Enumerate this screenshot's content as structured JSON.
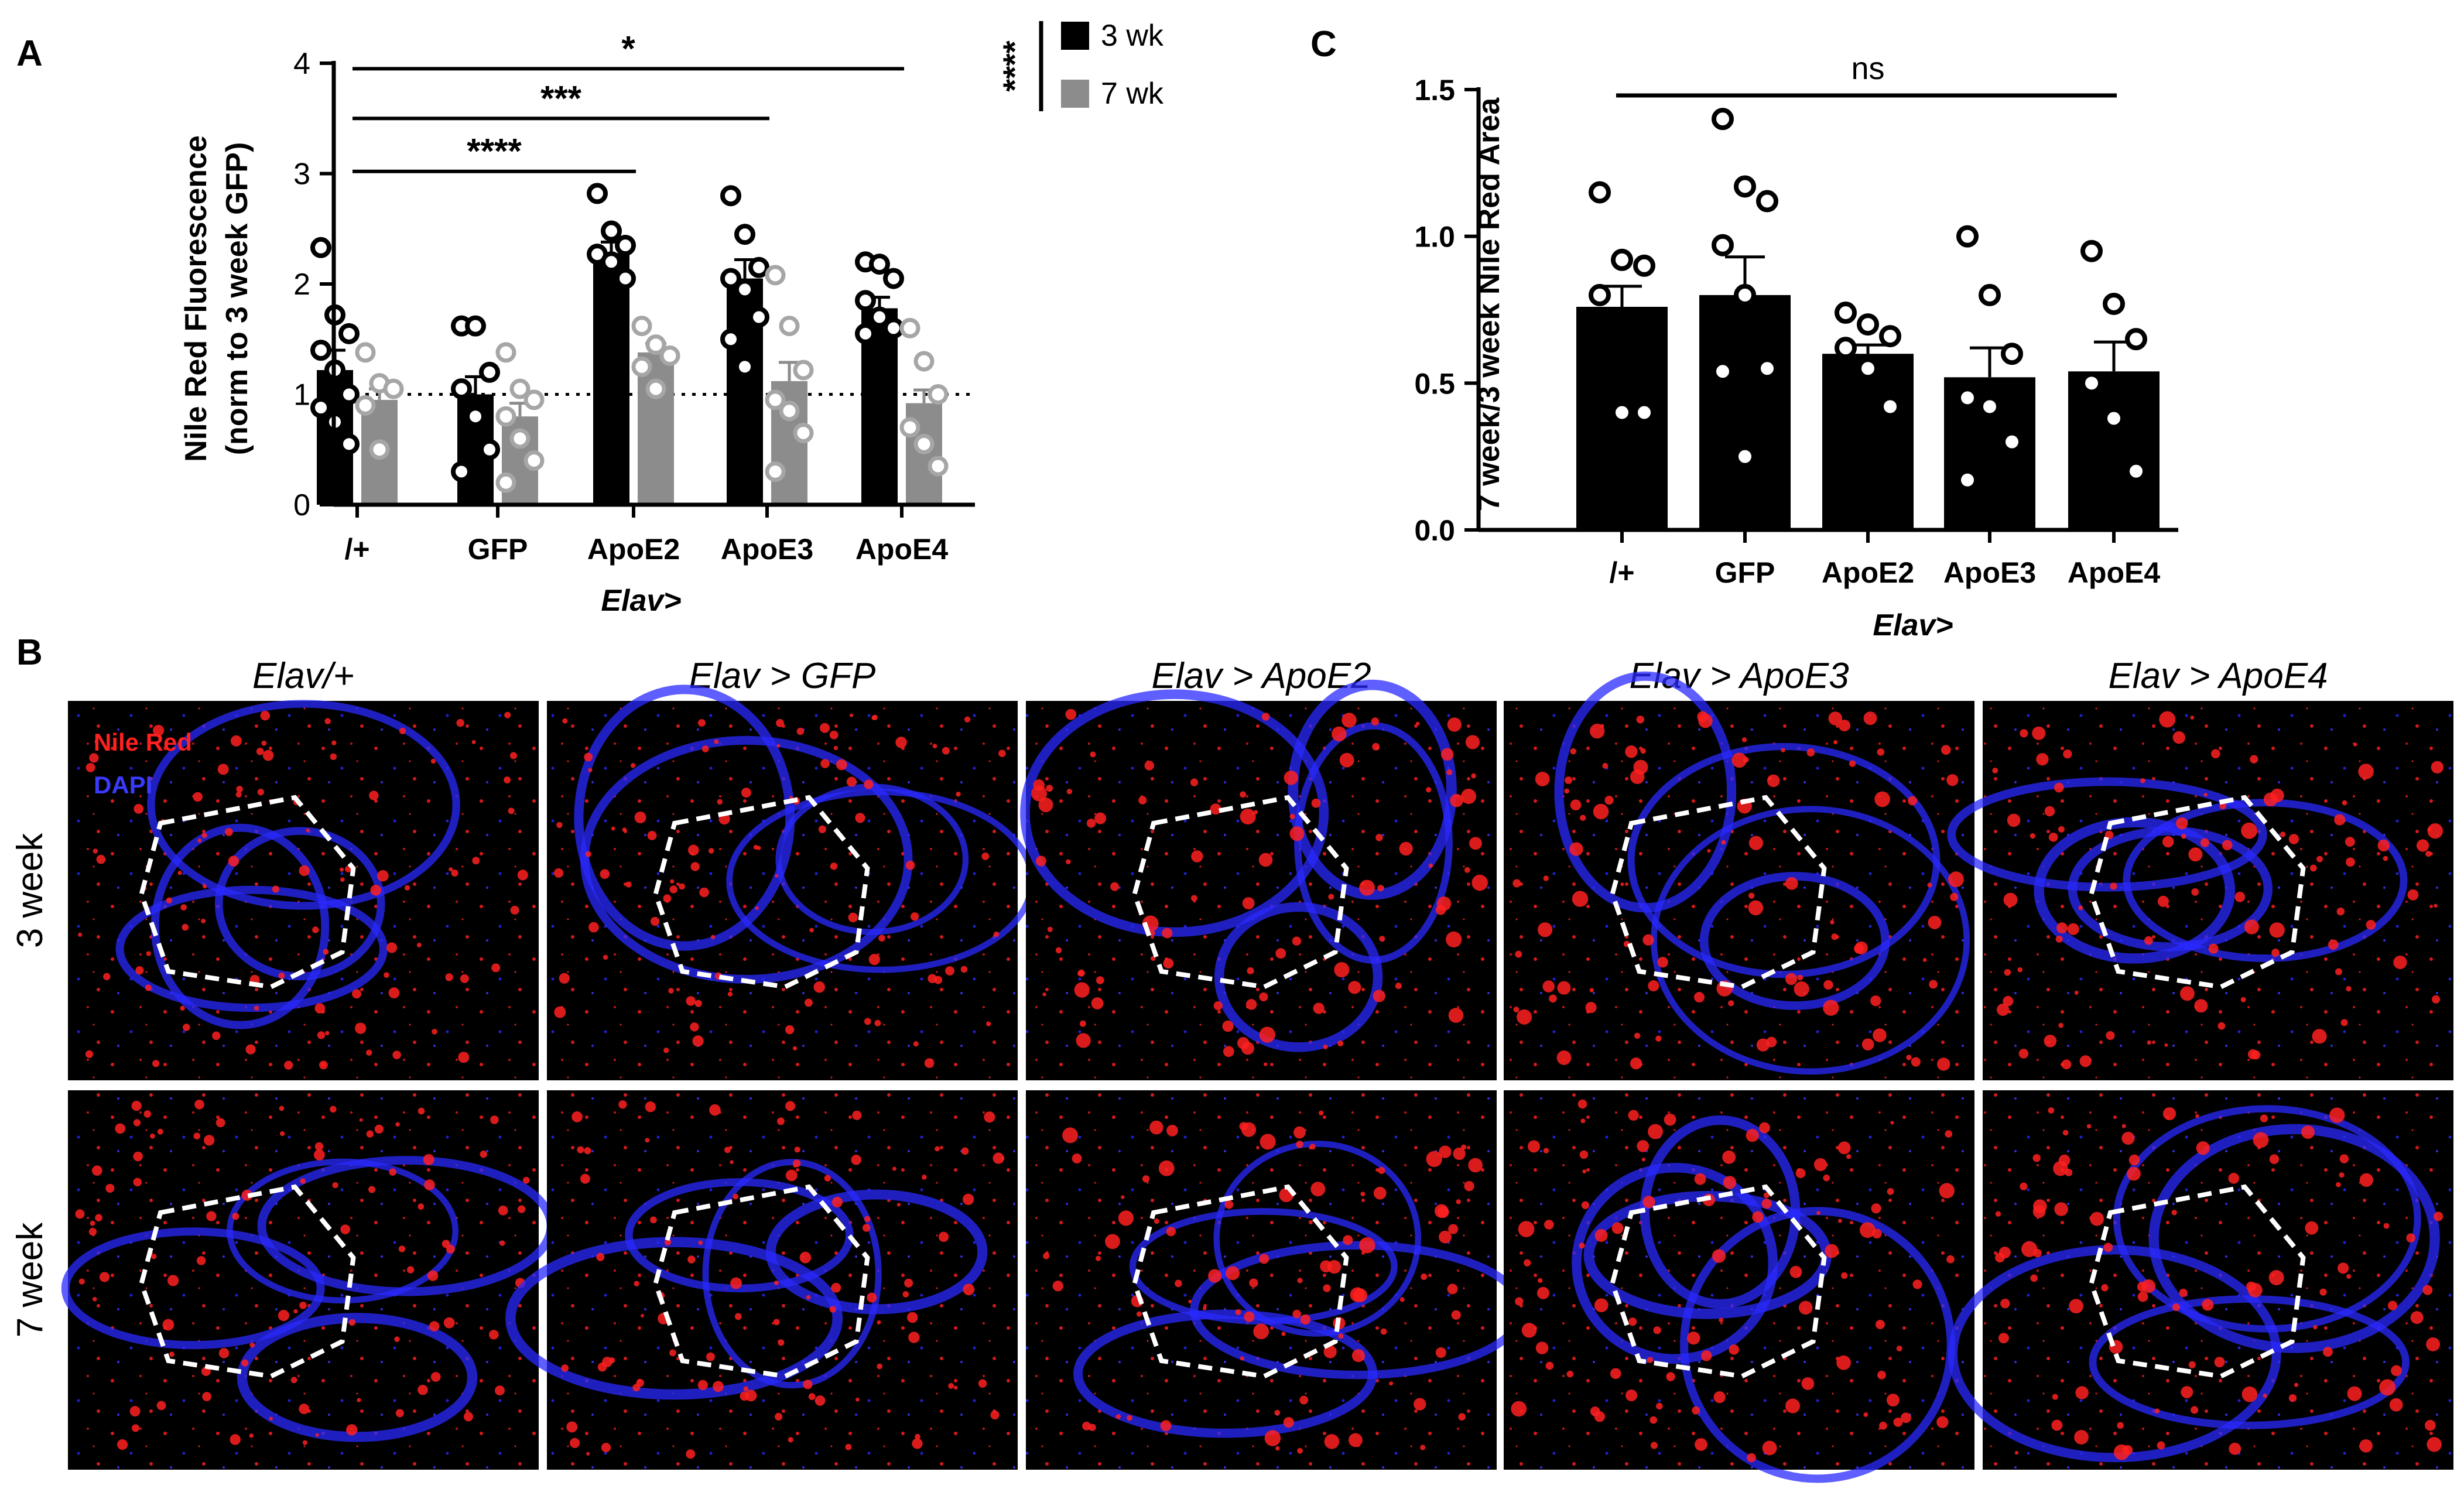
{
  "panels": {
    "a_letter": "A",
    "b_letter": "B",
    "c_letter": "C"
  },
  "colors": {
    "wk3": "#000000",
    "wk7": "#8c8c8c",
    "wk7_point": "#a6a6a6",
    "nile_red": "#ff2020",
    "dapi": "#2a2aff",
    "tissue_bg": "#000000"
  },
  "chart_data": [
    {
      "id": "A",
      "type": "bar",
      "title": "",
      "ylabel_line1": "Nile Red Fluorescence",
      "ylabel_line2": "(norm to 3 week  GFP)",
      "xlabel": "Elav>",
      "ylim": [
        0,
        4
      ],
      "yticks": [
        "0",
        "1",
        "2",
        "3",
        "4"
      ],
      "reference_line": 1,
      "categories": [
        "/+",
        "GFP",
        "ApoE2",
        "ApoE3",
        "ApoE4"
      ],
      "series": [
        {
          "name": "3 wk",
          "values": [
            1.22,
            1.0,
            2.28,
            2.05,
            1.78
          ],
          "sem": [
            0.18,
            0.16,
            0.1,
            0.17,
            0.1
          ],
          "points": [
            [
              2.33,
              1.72,
              1.55,
              1.4,
              1.22,
              1.0,
              0.88,
              0.75,
              0.55
            ],
            [
              1.62,
              1.62,
              1.2,
              1.05,
              0.8,
              0.5,
              0.3
            ],
            [
              2.82,
              2.48,
              2.35,
              2.27,
              2.2,
              2.05
            ],
            [
              2.8,
              2.45,
              2.15,
              2.05,
              1.95,
              1.7,
              1.5,
              1.25
            ],
            [
              2.2,
              2.18,
              2.05,
              1.85,
              1.7,
              1.6,
              1.55
            ]
          ]
        },
        {
          "name": "7 wk",
          "values": [
            0.95,
            0.8,
            1.38,
            1.12,
            0.92
          ],
          "sem": [
            0.1,
            0.12,
            0.08,
            0.17,
            0.12
          ],
          "points": [
            [
              1.38,
              1.1,
              1.05,
              0.9,
              0.5
            ],
            [
              1.38,
              1.05,
              0.95,
              0.8,
              0.6,
              0.4,
              0.2
            ],
            [
              1.62,
              1.45,
              1.35,
              1.25,
              1.05
            ],
            [
              2.08,
              1.62,
              1.22,
              0.95,
              0.85,
              0.65,
              0.3
            ],
            [
              1.6,
              1.3,
              1.0,
              0.7,
              0.55,
              0.35
            ]
          ]
        }
      ],
      "significance": [
        {
          "from": 0,
          "to": 4,
          "label": "*",
          "y": 3.95
        },
        {
          "from": 0,
          "to": 3,
          "label": "***",
          "y": 3.5
        },
        {
          "from": 0,
          "to": 2,
          "label": "****",
          "y": 3.02
        }
      ],
      "legend": {
        "placement": "top-right",
        "bracket_label": "****"
      }
    },
    {
      "id": "C",
      "type": "bar",
      "title": "",
      "ylabel": "7 week/3 week Nile Red Area",
      "xlabel": "Elav>",
      "ylim": [
        0,
        1.5
      ],
      "yticks": [
        "0.0",
        "0.5",
        "1.0",
        "1.5"
      ],
      "categories": [
        "/+",
        "GFP",
        "ApoE2",
        "ApoE3",
        "ApoE4"
      ],
      "values": [
        0.76,
        0.8,
        0.6,
        0.52,
        0.54
      ],
      "sem": [
        0.07,
        0.13,
        0.03,
        0.1,
        0.1
      ],
      "points": [
        [
          1.15,
          0.92,
          0.9,
          0.8,
          0.4,
          0.4
        ],
        [
          1.4,
          1.17,
          1.12,
          0.97,
          0.8,
          0.55,
          0.54,
          0.25
        ],
        [
          0.74,
          0.7,
          0.66,
          0.62,
          0.55,
          0.42
        ],
        [
          1.0,
          0.8,
          0.6,
          0.45,
          0.42,
          0.3,
          0.17
        ],
        [
          0.95,
          0.77,
          0.65,
          0.5,
          0.38,
          0.2
        ]
      ],
      "significance": [
        {
          "from": 0,
          "to": 4,
          "label": "ns",
          "y": 1.48
        }
      ]
    }
  ],
  "microscopy": {
    "columns": [
      "Elav/+",
      "Elav > GFP",
      "Elav > ApoE2",
      "Elav > ApoE3",
      "Elav > ApoE4"
    ],
    "rows": [
      "3 week",
      "7 week"
    ],
    "legend": {
      "nile_red": "Nile Red",
      "dapi": "DAPI"
    }
  }
}
